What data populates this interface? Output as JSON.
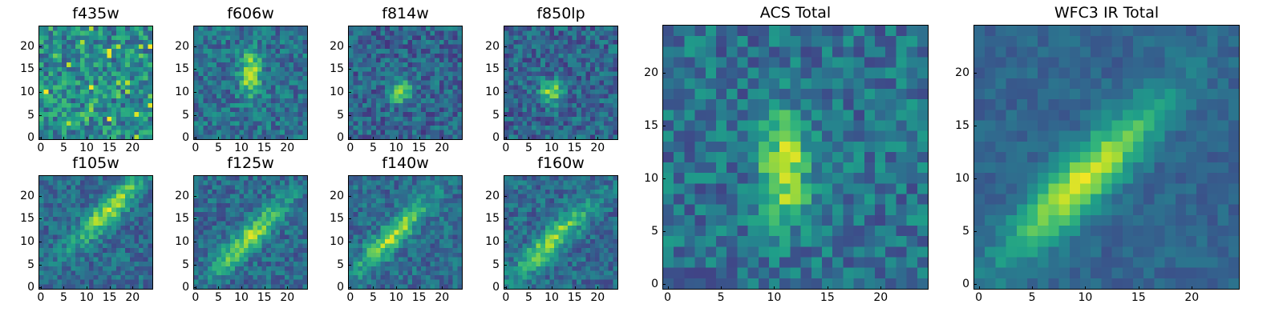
{
  "colormap": "viridis",
  "chart_data": [
    {
      "id": "f435w",
      "type": "heatmap",
      "title": "f435w",
      "xlabel": "",
      "ylabel": "",
      "xlim": [
        -0.5,
        24.5
      ],
      "ylim": [
        -0.5,
        24.5
      ],
      "x_ticks": [
        0,
        5,
        10,
        15,
        20
      ],
      "y_ticks": [
        0,
        5,
        10,
        15,
        20
      ],
      "grid_size": [
        25,
        25
      ],
      "pattern": "noise",
      "seed": 11,
      "intensity_range": [
        0,
        1
      ],
      "note_values": "uniform noise field"
    },
    {
      "id": "f606w",
      "type": "heatmap",
      "title": "f606w",
      "xlabel": "",
      "ylabel": "",
      "xlim": [
        -0.5,
        24.5
      ],
      "ylim": [
        -0.5,
        24.5
      ],
      "x_ticks": [
        0,
        5,
        10,
        15,
        20
      ],
      "y_ticks": [
        0,
        5,
        10,
        15,
        20
      ],
      "grid_size": [
        25,
        25
      ],
      "pattern": "vertical-blob",
      "seed": 23,
      "peak": [
        12,
        14
      ],
      "intensity_range": [
        0,
        1
      ]
    },
    {
      "id": "f814w",
      "type": "heatmap",
      "title": "f814w",
      "xlabel": "",
      "ylabel": "",
      "xlim": [
        -0.5,
        24.5
      ],
      "ylim": [
        -0.5,
        24.5
      ],
      "x_ticks": [
        0,
        5,
        10,
        15,
        20
      ],
      "y_ticks": [
        0,
        5,
        10,
        15,
        20
      ],
      "grid_size": [
        25,
        25
      ],
      "pattern": "dark-noise",
      "seed": 37,
      "peak": [
        11,
        10
      ],
      "intensity_range": [
        0,
        1
      ]
    },
    {
      "id": "f850lp",
      "type": "heatmap",
      "title": "f850lp",
      "xlabel": "",
      "ylabel": "",
      "xlim": [
        -0.5,
        24.5
      ],
      "ylim": [
        -0.5,
        24.5
      ],
      "x_ticks": [
        0,
        5,
        10,
        15,
        20
      ],
      "y_ticks": [
        0,
        5,
        10,
        15,
        20
      ],
      "grid_size": [
        25,
        25
      ],
      "pattern": "dark-noise",
      "seed": 41,
      "peak": [
        10,
        10
      ],
      "intensity_range": [
        0,
        1
      ]
    },
    {
      "id": "f105w",
      "type": "heatmap",
      "title": "f105w",
      "xlabel": "",
      "ylabel": "",
      "xlim": [
        -0.5,
        24.5
      ],
      "ylim": [
        -0.5,
        24.5
      ],
      "x_ticks": [
        0,
        5,
        10,
        15,
        20
      ],
      "y_ticks": [
        0,
        5,
        10,
        15,
        20
      ],
      "grid_size": [
        25,
        25
      ],
      "pattern": "diagonal",
      "seed": 53,
      "peak": [
        15,
        17
      ],
      "intensity_range": [
        0,
        1
      ]
    },
    {
      "id": "f125w",
      "type": "heatmap",
      "title": "f125w",
      "xlabel": "",
      "ylabel": "",
      "xlim": [
        -0.5,
        24.5
      ],
      "ylim": [
        -0.5,
        24.5
      ],
      "x_ticks": [
        0,
        5,
        10,
        15,
        20
      ],
      "y_ticks": [
        0,
        5,
        10,
        15,
        20
      ],
      "grid_size": [
        25,
        25
      ],
      "pattern": "diagonal",
      "seed": 67,
      "peak": [
        12,
        11
      ],
      "intensity_range": [
        0,
        1
      ]
    },
    {
      "id": "f140w",
      "type": "heatmap",
      "title": "f140w",
      "xlabel": "",
      "ylabel": "",
      "xlim": [
        -0.5,
        24.5
      ],
      "ylim": [
        -0.5,
        24.5
      ],
      "x_ticks": [
        0,
        5,
        10,
        15,
        20
      ],
      "y_ticks": [
        0,
        5,
        10,
        15,
        20
      ],
      "grid_size": [
        25,
        25
      ],
      "pattern": "diagonal",
      "seed": 79,
      "peak": [
        9,
        11
      ],
      "intensity_range": [
        0,
        1
      ]
    },
    {
      "id": "f160w",
      "type": "heatmap",
      "title": "f160w",
      "xlabel": "",
      "ylabel": "",
      "xlim": [
        -0.5,
        24.5
      ],
      "ylim": [
        -0.5,
        24.5
      ],
      "x_ticks": [
        0,
        5,
        10,
        15,
        20
      ],
      "y_ticks": [
        0,
        5,
        10,
        15,
        20
      ],
      "grid_size": [
        25,
        25
      ],
      "pattern": "diagonal",
      "seed": 83,
      "peak": [
        10,
        10
      ],
      "intensity_range": [
        0,
        1
      ]
    },
    {
      "id": "acs-total",
      "type": "heatmap",
      "title": "ACS Total",
      "xlabel": "",
      "ylabel": "",
      "xlim": [
        -0.5,
        24.5
      ],
      "ylim": [
        -0.5,
        24.5
      ],
      "x_ticks": [
        0,
        5,
        10,
        15,
        20
      ],
      "y_ticks": [
        0,
        5,
        10,
        15,
        20
      ],
      "grid_size": [
        25,
        25
      ],
      "pattern": "vertical-blob",
      "seed": 97,
      "peak": [
        11,
        11
      ],
      "intensity_range": [
        0,
        1
      ]
    },
    {
      "id": "wfc3-ir-total",
      "type": "heatmap",
      "title": "WFC3 IR Total",
      "xlabel": "",
      "ylabel": "",
      "xlim": [
        -0.5,
        24.5
      ],
      "ylim": [
        -0.5,
        24.5
      ],
      "x_ticks": [
        0,
        5,
        10,
        15,
        20
      ],
      "y_ticks": [
        0,
        5,
        10,
        15,
        20
      ],
      "grid_size": [
        25,
        25
      ],
      "pattern": "diagonal-smooth",
      "seed": 101,
      "peak": [
        10,
        10
      ],
      "intensity_range": [
        0,
        1
      ]
    }
  ]
}
